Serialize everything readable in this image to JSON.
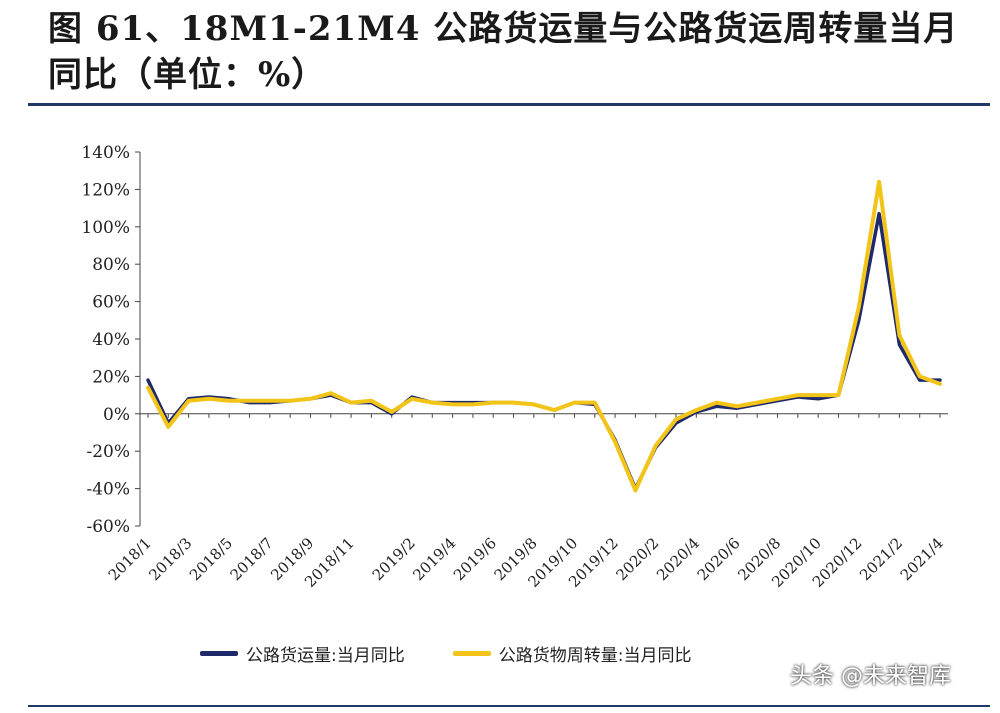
{
  "header": {
    "title": "图 61、18M1-21M4 公路货运量与公路货运周转量当月同比（单位：%）"
  },
  "watermark": "头条 @未来智库",
  "chart_data": {
    "type": "line",
    "title": "图 61、18M1-21M4 公路货运量与公路货运周转量当月同比（单位：%）",
    "xlabel": "",
    "ylabel": "",
    "ylim": [
      -60,
      140
    ],
    "yticks": [
      "140%",
      "120%",
      "100%",
      "80%",
      "60%",
      "40%",
      "20%",
      "0%",
      "-20%",
      "-40%",
      "-60%"
    ],
    "yticks_values": [
      140,
      120,
      100,
      80,
      60,
      40,
      20,
      0,
      -20,
      -40,
      -60
    ],
    "x": [
      "2018/1",
      "2018/2",
      "2018/3",
      "2018/4",
      "2018/5",
      "2018/6",
      "2018/7",
      "2018/8",
      "2018/9",
      "2018/10",
      "2018/11",
      "2018/12",
      "2019/1",
      "2019/2",
      "2019/3",
      "2019/4",
      "2019/5",
      "2019/6",
      "2019/7",
      "2019/8",
      "2019/9",
      "2019/10",
      "2019/11",
      "2019/12",
      "2020/1",
      "2020/2",
      "2020/3",
      "2020/4",
      "2020/5",
      "2020/6",
      "2020/7",
      "2020/8",
      "2020/9",
      "2020/10",
      "2020/11",
      "2020/12",
      "2021/1",
      "2021/2",
      "2021/3",
      "2021/4"
    ],
    "xtick_labels": [
      "2018/1",
      "2018/3",
      "2018/5",
      "2018/7",
      "2018/9",
      "2018/11",
      "2019/2",
      "2019/4",
      "2019/6",
      "2019/8",
      "2019/10",
      "2019/12",
      "2020/2",
      "2020/4",
      "2020/6",
      "2020/8",
      "2020/10",
      "2020/12",
      "2021/2",
      "2021/4"
    ],
    "xtick_positions": [
      0,
      2,
      4,
      6,
      8,
      10,
      13,
      15,
      17,
      19,
      21,
      23,
      25,
      27,
      29,
      31,
      33,
      35,
      37,
      39
    ],
    "grid": false,
    "legend_position": "bottom",
    "series": [
      {
        "name": "公路货运量:当月同比",
        "color": "#1f2a6b",
        "values": [
          18,
          -5,
          8,
          9,
          8,
          6,
          6,
          7,
          8,
          10,
          6,
          6,
          0,
          9,
          6,
          6,
          6,
          6,
          6,
          5,
          2,
          6,
          5,
          -14,
          -40,
          -18,
          -5,
          1,
          4,
          3,
          5,
          7,
          9,
          8,
          10,
          50,
          107,
          37,
          18,
          18
        ]
      },
      {
        "name": "公路货物周转量:当月同比",
        "color": "#f2c417",
        "values": [
          14,
          -7,
          7,
          8,
          7,
          7,
          7,
          7,
          8,
          11,
          6,
          7,
          1,
          8,
          6,
          5,
          5,
          6,
          6,
          5,
          2,
          6,
          6,
          -15,
          -41,
          -17,
          -3,
          2,
          6,
          4,
          6,
          8,
          10,
          10,
          10,
          57,
          124,
          42,
          20,
          16
        ]
      }
    ]
  }
}
